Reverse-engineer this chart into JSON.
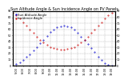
{
  "title": "Sun Altitude Angle & Sun Incidence Angle on PV Panels",
  "legend_blue": "Sun Altitude Angle",
  "legend_red": "Incidence Angle",
  "x_hours": [
    4.5,
    5.0,
    5.5,
    6.0,
    6.5,
    7.0,
    7.5,
    8.0,
    8.5,
    9.0,
    9.5,
    10.0,
    10.5,
    11.0,
    11.5,
    12.0,
    12.5,
    13.0,
    13.5,
    14.0,
    14.5,
    15.0,
    15.5,
    16.0,
    16.5,
    17.0,
    17.5,
    18.0,
    18.5,
    19.0,
    19.5
  ],
  "blue_y": [
    0,
    2,
    5,
    9,
    14,
    19,
    25,
    31,
    37,
    43,
    49,
    55,
    59,
    63,
    65,
    66,
    65,
    63,
    59,
    54,
    48,
    42,
    36,
    29,
    22,
    15,
    9,
    4,
    1,
    0,
    0
  ],
  "red_y": [
    88,
    83,
    78,
    72,
    66,
    60,
    54,
    48,
    43,
    38,
    34,
    31,
    29,
    28,
    27,
    27,
    28,
    29,
    31,
    34,
    38,
    43,
    48,
    54,
    60,
    66,
    72,
    78,
    83,
    88,
    90
  ],
  "ylim": [
    0,
    90
  ],
  "xlim": [
    4.5,
    19.5
  ],
  "yticks": [
    0,
    10,
    20,
    30,
    40,
    50,
    60,
    70,
    80,
    90
  ],
  "xtick_hours": [
    5,
    6,
    7,
    8,
    9,
    10,
    11,
    12,
    13,
    14,
    15,
    16,
    17,
    18,
    19
  ],
  "blue_color": "#0000cc",
  "red_color": "#cc0000",
  "bg_color": "#ffffff",
  "grid_color": "#888888",
  "title_fontsize": 3.5,
  "tick_fontsize": 2.5,
  "legend_fontsize": 2.8,
  "marker_size": 0.8
}
